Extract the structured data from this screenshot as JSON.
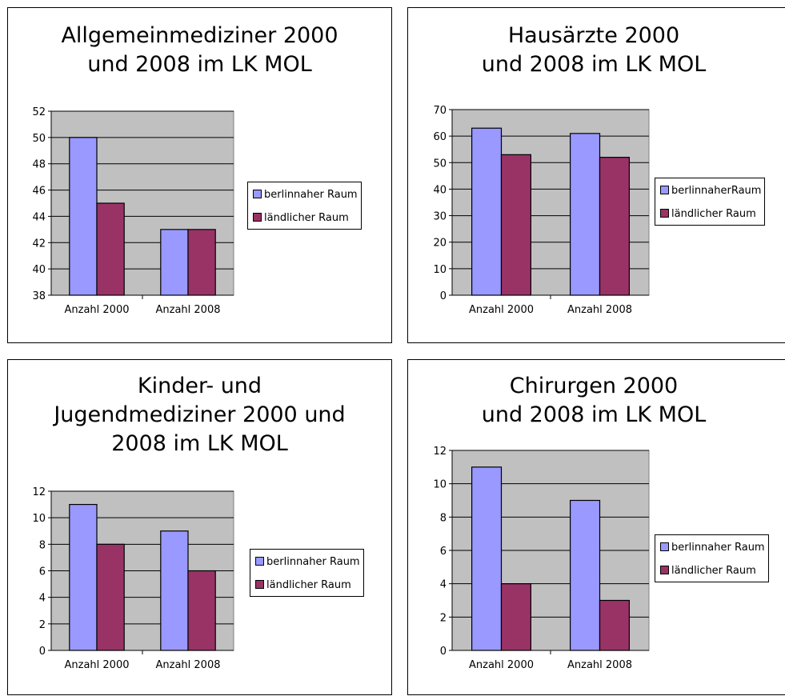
{
  "colors": {
    "series1": "#9999ff",
    "series2": "#993366",
    "plot_bg": "#c0c0c0"
  },
  "chart_data": [
    {
      "type": "bar",
      "title_lines": [
        "Allgemeinmediziner 2000",
        "und 2008 im LK MOL"
      ],
      "categories": [
        "Anzahl 2000",
        "Anzahl 2008"
      ],
      "series": [
        {
          "name": "berlinnaher Raum",
          "values": [
            50,
            43
          ]
        },
        {
          "name": "ländlicher Raum",
          "values": [
            45,
            43
          ]
        }
      ],
      "ylim": [
        38,
        52
      ],
      "ytick_step": 2,
      "grid": true,
      "legend": "right"
    },
    {
      "type": "bar",
      "title_lines": [
        "Hausärzte 2000",
        "und 2008 im LK MOL"
      ],
      "categories": [
        "Anzahl 2000",
        "Anzahl 2008"
      ],
      "series": [
        {
          "name": "berlinnaherRaum",
          "values": [
            63,
            61
          ]
        },
        {
          "name": "ländlicher Raum",
          "values": [
            53,
            52
          ]
        }
      ],
      "ylim": [
        0,
        70
      ],
      "ytick_step": 10,
      "grid": true,
      "legend": "right"
    },
    {
      "type": "bar",
      "title_lines": [
        "Kinder- und",
        "Jugendmediziner 2000 und",
        "2008 im LK MOL"
      ],
      "categories": [
        "Anzahl 2000",
        "Anzahl 2008"
      ],
      "series": [
        {
          "name": "berlinnaher Raum",
          "values": [
            11,
            9
          ]
        },
        {
          "name": "ländlicher Raum",
          "values": [
            8,
            6
          ]
        }
      ],
      "ylim": [
        0,
        12
      ],
      "ytick_step": 2,
      "grid": true,
      "legend": "right"
    },
    {
      "type": "bar",
      "title_lines": [
        "Chirurgen 2000",
        "und 2008 im LK MOL"
      ],
      "categories": [
        "Anzahl 2000",
        "Anzahl 2008"
      ],
      "series": [
        {
          "name": "berlinnaher Raum",
          "values": [
            11,
            9
          ]
        },
        {
          "name": "ländlicher Raum",
          "values": [
            4,
            3
          ]
        }
      ],
      "ylim": [
        0,
        12
      ],
      "ytick_step": 2,
      "grid": true,
      "legend": "right"
    }
  ]
}
